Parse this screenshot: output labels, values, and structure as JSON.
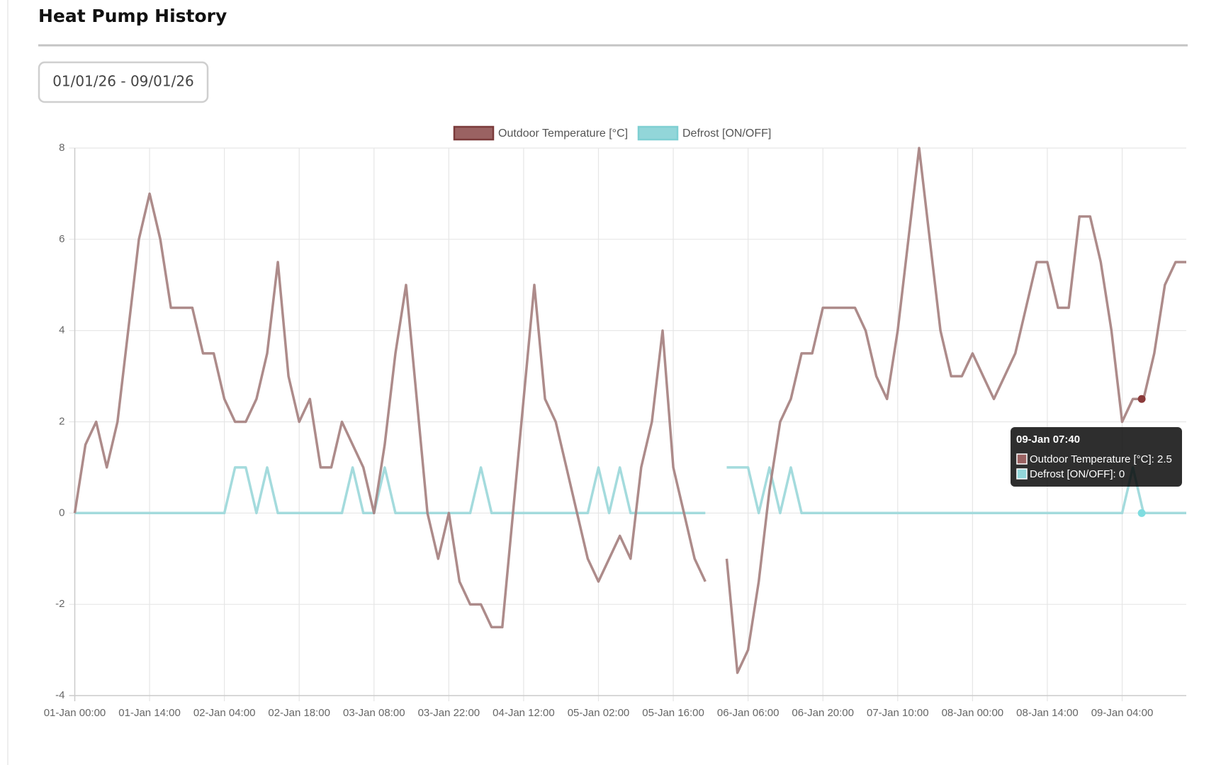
{
  "page": {
    "title": "Heat Pump History",
    "date_range": "01/01/26 - 09/01/26"
  },
  "chart_data": {
    "type": "line",
    "categories": [
      "01-Jan 00:00",
      null,
      null,
      null,
      null,
      null,
      null,
      "01-Jan 14:00",
      null,
      null,
      null,
      null,
      null,
      null,
      "02-Jan 04:00",
      null,
      null,
      null,
      null,
      null,
      null,
      "02-Jan 18:00",
      null,
      null,
      null,
      null,
      null,
      null,
      "03-Jan 08:00",
      null,
      null,
      null,
      null,
      null,
      null,
      "03-Jan 22:00",
      null,
      null,
      null,
      null,
      null,
      null,
      "04-Jan 12:00",
      null,
      null,
      null,
      null,
      null,
      null,
      "05-Jan 02:00",
      null,
      null,
      null,
      null,
      null,
      null,
      "05-Jan 16:00",
      null,
      null,
      null,
      null,
      null,
      null,
      "06-Jan 06:00",
      null,
      null,
      null,
      null,
      null,
      null,
      "06-Jan 20:00",
      null,
      null,
      null,
      null,
      null,
      null,
      "07-Jan 10:00",
      null,
      null,
      null,
      null,
      null,
      null,
      "08-Jan 00:00",
      null,
      null,
      null,
      null,
      null,
      null,
      "08-Jan 14:00",
      null,
      null,
      null,
      null,
      null,
      null,
      "09-Jan 04:00",
      null,
      null,
      null,
      null,
      null,
      null
    ],
    "series": [
      {
        "name": "Outdoor Temperature [°C]",
        "color": "#a98584",
        "legend_fill": "#9a6262",
        "legend_border": "#7b3b3b",
        "values": [
          0,
          1.5,
          2,
          1,
          2,
          4,
          6,
          7,
          6,
          4.5,
          4.5,
          4.5,
          3.5,
          3.5,
          2.5,
          2,
          2,
          2.5,
          3.5,
          5.5,
          3,
          2,
          2.5,
          1,
          1,
          2,
          1.5,
          1,
          0,
          1.5,
          3.5,
          5,
          2.5,
          0,
          -1,
          0,
          -1.5,
          -2,
          -2,
          -2.5,
          -2.5,
          0,
          2.5,
          5,
          2.5,
          2,
          1,
          0,
          -1,
          -1.5,
          -1,
          -0.5,
          -1,
          1,
          2,
          4,
          1,
          0,
          -1,
          -1.5,
          null,
          -1,
          -3.5,
          -3,
          -1.5,
          0.5,
          2,
          2.5,
          3.5,
          3.5,
          4.5,
          4.5,
          4.5,
          4.5,
          4,
          3,
          2.5,
          4,
          6,
          8,
          6,
          4,
          3,
          3,
          3.5,
          3,
          2.5,
          3,
          3.5,
          4.5,
          5.5,
          5.5,
          4.5,
          4.5,
          6.5,
          6.5,
          5.5,
          4,
          2,
          2.5,
          2.5,
          3.5,
          5,
          5.5,
          5.5
        ]
      },
      {
        "name": "Defrost [ON/OFF]",
        "color": "#9fd9db",
        "legend_fill": "#92d6d9",
        "legend_border": "#7fcfd2",
        "values": [
          0,
          0,
          0,
          0,
          0,
          0,
          0,
          0,
          0,
          0,
          0,
          0,
          0,
          0,
          0,
          1,
          1,
          0,
          1,
          0,
          0,
          0,
          0,
          0,
          0,
          0,
          1,
          0,
          0,
          1,
          0,
          0,
          0,
          0,
          0,
          0,
          0,
          0,
          1,
          0,
          0,
          0,
          0,
          0,
          0,
          0,
          0,
          0,
          0,
          1,
          0,
          1,
          0,
          0,
          0,
          0,
          0,
          0,
          0,
          0,
          null,
          1,
          1,
          1,
          0,
          1,
          0,
          1,
          0,
          0,
          0,
          0,
          0,
          0,
          0,
          0,
          0,
          0,
          0,
          0,
          0,
          0,
          0,
          0,
          0,
          0,
          0,
          0,
          0,
          0,
          0,
          0,
          0,
          0,
          0,
          0,
          0,
          0,
          0,
          1,
          0,
          0,
          0,
          0,
          0
        ]
      }
    ],
    "ylim": [
      -4,
      8
    ],
    "yticks": [
      -4,
      -2,
      0,
      2,
      4,
      6,
      8
    ],
    "grid": true,
    "legend": "top",
    "tooltip": {
      "title": "09-Jan 07:40",
      "items": [
        {
          "label": "Outdoor Temperature [°C]: 2.5",
          "value": 2.5,
          "marker": "#8b3a3a"
        },
        {
          "label": "Defrost [ON/OFF]: 0",
          "value": 0,
          "marker": "#7fdde0"
        }
      ]
    }
  }
}
